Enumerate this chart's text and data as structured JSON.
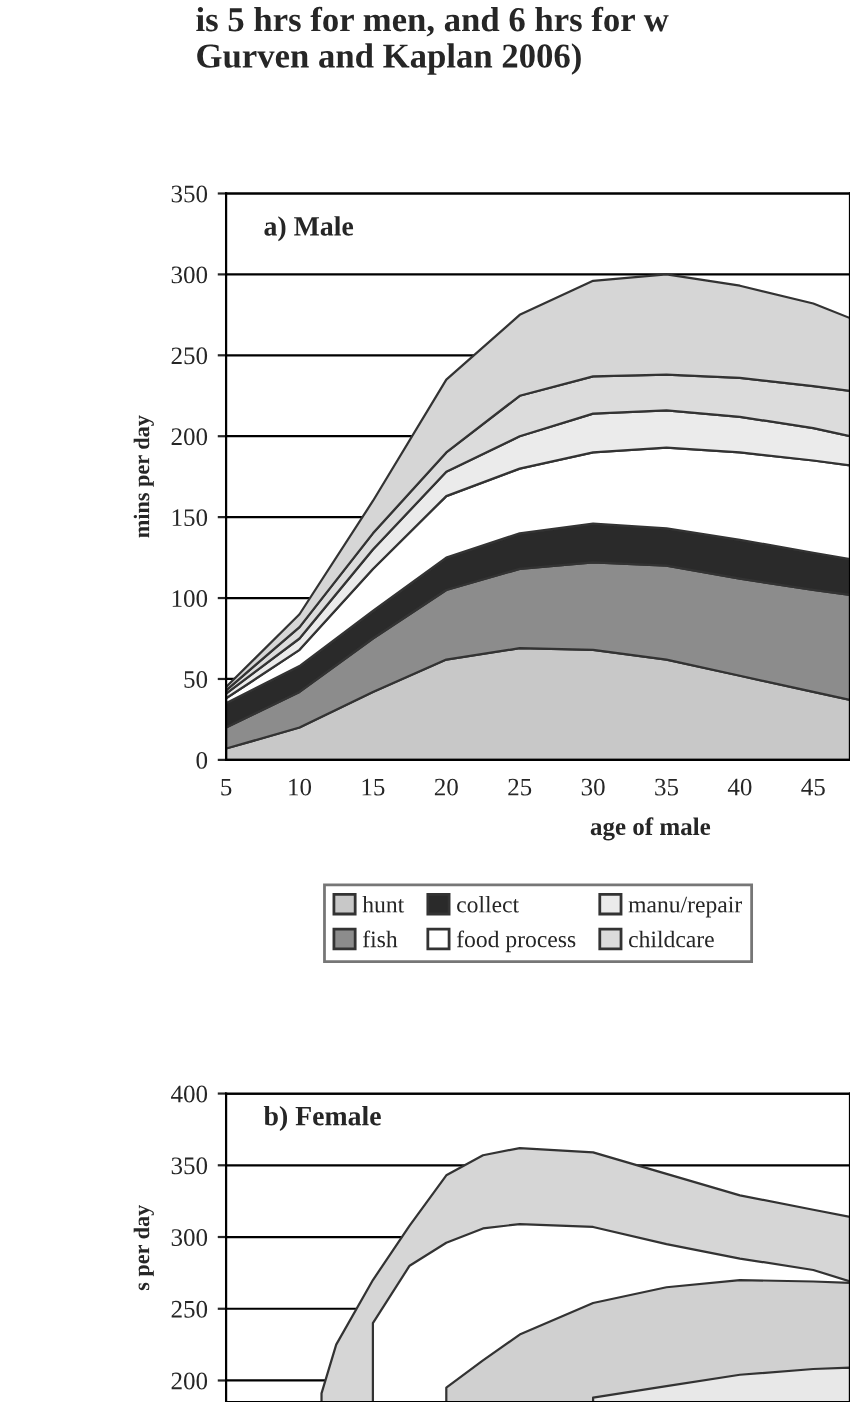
{
  "chart_data": [
    {
      "type": "area",
      "title": "is 5 hrs for men, and 6 hrs for w\nGurven and Kaplan 2006)",
      "annotations": [
        "a) Male"
      ],
      "xlabel": "age of male",
      "ylabel": "mins per day",
      "stacked": true,
      "grid": "y",
      "legend": "bottom",
      "x": [
        5,
        10,
        15,
        20,
        25,
        30,
        35,
        40,
        45,
        47.5
      ],
      "xlim": [
        5,
        47.5
      ],
      "xticks": [
        5,
        10,
        15,
        20,
        25,
        30,
        35,
        40,
        45
      ],
      "ylim": [
        0,
        350
      ],
      "yticks": [
        0,
        50,
        100,
        150,
        200,
        250,
        300,
        350
      ],
      "series": [
        {
          "name": "hunt",
          "color": "#c8c8c8",
          "values": [
            7,
            20,
            42,
            62,
            69,
            68,
            62,
            52,
            42,
            37
          ]
        },
        {
          "name": "fish",
          "color": "#8c8c8c",
          "values": [
            13,
            22,
            33,
            43,
            49,
            54,
            58,
            60,
            63,
            65
          ]
        },
        {
          "name": "collect",
          "color": "#2a2a2a",
          "values": [
            15,
            16,
            17,
            20,
            22,
            24,
            23,
            24,
            23,
            22
          ]
        },
        {
          "name": "food process",
          "color": "#ffffff",
          "values": [
            3,
            10,
            26,
            38,
            40,
            44,
            50,
            54,
            57,
            58
          ]
        },
        {
          "name": "manu/repair",
          "color": "#ebebeb",
          "values": [
            3,
            7,
            12,
            15,
            20,
            24,
            23,
            22,
            20,
            18
          ]
        },
        {
          "name": "childcare",
          "color": "#dcdcdc",
          "values": [
            2,
            7,
            10,
            12,
            25,
            23,
            22,
            24,
            26,
            28
          ]
        },
        {
          "color": "#d6d6d6",
          "values": [
            2,
            8,
            20,
            45,
            50,
            59,
            62,
            57,
            51,
            45
          ]
        }
      ]
    },
    {
      "type": "area",
      "annotations": [
        "b) Female"
      ],
      "ylabel": "s per day",
      "stacked": false,
      "grid": "y",
      "tick_labels": "y",
      "x": [
        11.5,
        12.5,
        15,
        17.5,
        20,
        22.5,
        25,
        30,
        35,
        40,
        45,
        47.5
      ],
      "xlim": [
        5,
        47.5
      ],
      "ylim": [
        185,
        400
      ],
      "yticks": [
        200,
        250,
        300,
        350,
        400
      ],
      "series": [
        {
          "color": "#d6d6d6",
          "values": [
            191,
            225,
            270,
            308,
            343,
            357,
            362,
            359,
            344,
            329,
            319,
            314
          ]
        },
        {
          "color": "#ffffff",
          "values": [
            null,
            null,
            240,
            280,
            296,
            306,
            309,
            307,
            295,
            285,
            277,
            269
          ]
        },
        {
          "color": "#d0d0d0",
          "values": [
            null,
            null,
            null,
            null,
            195,
            214,
            232,
            254,
            265,
            270,
            269,
            268
          ]
        },
        {
          "color": "#e8e8e8",
          "values": [
            null,
            null,
            null,
            null,
            null,
            null,
            null,
            188,
            196,
            204,
            208,
            209
          ]
        }
      ]
    }
  ]
}
